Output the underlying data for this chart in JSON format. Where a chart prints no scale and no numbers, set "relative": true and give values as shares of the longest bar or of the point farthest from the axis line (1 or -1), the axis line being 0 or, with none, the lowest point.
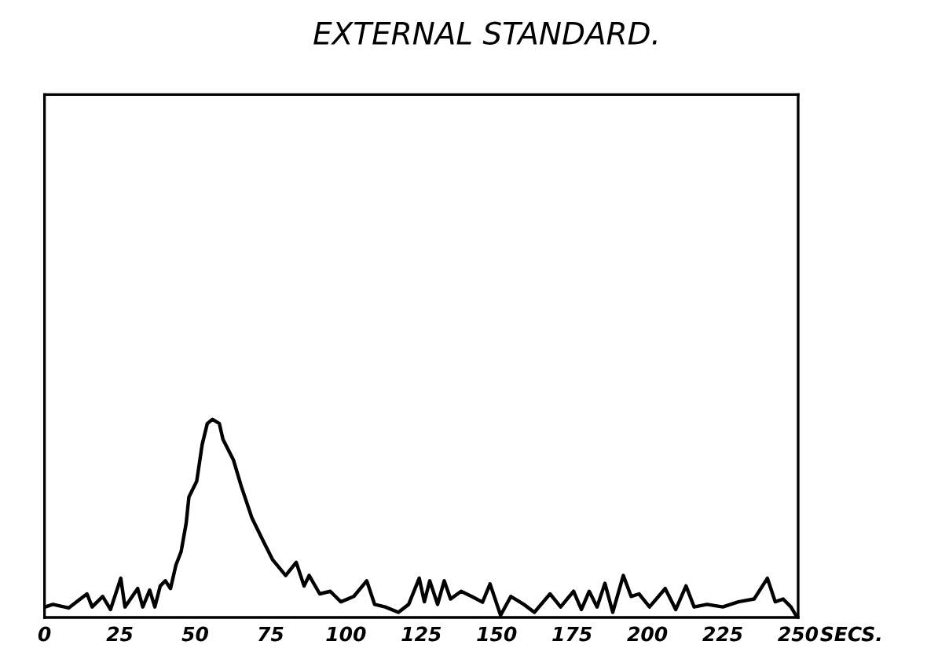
{
  "chart_data": {
    "type": "line",
    "title": "EXTERNAL STANDARD.",
    "xlabel": "SECS.",
    "relative": true,
    "color": "#000000",
    "xlim": [
      0,
      250
    ],
    "xticks": [
      0,
      25,
      50,
      75,
      100,
      125,
      150,
      175,
      200,
      225,
      250
    ],
    "grid": false,
    "legend": false,
    "x": [
      0.2,
      2.8,
      8.0,
      14.1,
      15.8,
      19.3,
      21.9,
      25.3,
      26.7,
      30.9,
      32.6,
      34.9,
      36.6,
      38.4,
      40.1,
      41.8,
      43.6,
      45.3,
      47.0,
      47.9,
      50.5,
      52.3,
      54.0,
      55.7,
      58.0,
      59.2,
      62.7,
      65.3,
      68.8,
      72.2,
      75.7,
      80.0,
      83.5,
      86.1,
      87.8,
      91.3,
      94.8,
      98.3,
      102.6,
      106.9,
      109.5,
      113.0,
      117.4,
      120.8,
      124.3,
      126.0,
      127.8,
      130.4,
      132.6,
      134.7,
      138.2,
      141.7,
      145.3,
      147.8,
      151.3,
      154.7,
      159.0,
      162.5,
      167.7,
      171.2,
      175.5,
      178.1,
      180.7,
      183.3,
      185.9,
      188.5,
      192.0,
      194.6,
      197.2,
      200.7,
      205.9,
      209.4,
      212.8,
      215.5,
      219.8,
      225.0,
      230.2,
      235.4,
      239.8,
      242.4,
      245.0,
      247.6,
      249.7
    ],
    "values": [
      0.053,
      0.066,
      0.048,
      0.119,
      0.053,
      0.106,
      0.04,
      0.198,
      0.053,
      0.146,
      0.053,
      0.138,
      0.053,
      0.159,
      0.185,
      0.146,
      0.265,
      0.331,
      0.476,
      0.608,
      0.688,
      0.873,
      0.979,
      1.0,
      0.979,
      0.899,
      0.794,
      0.661,
      0.503,
      0.397,
      0.291,
      0.212,
      0.278,
      0.159,
      0.212,
      0.119,
      0.132,
      0.079,
      0.106,
      0.185,
      0.066,
      0.053,
      0.026,
      0.066,
      0.198,
      0.079,
      0.185,
      0.066,
      0.185,
      0.093,
      0.132,
      0.106,
      0.077,
      0.169,
      0.011,
      0.106,
      0.066,
      0.026,
      0.119,
      0.053,
      0.132,
      0.04,
      0.132,
      0.053,
      0.172,
      0.026,
      0.212,
      0.106,
      0.119,
      0.053,
      0.146,
      0.04,
      0.159,
      0.053,
      0.066,
      0.053,
      0.079,
      0.093,
      0.198,
      0.079,
      0.093,
      0.053,
      0.0
    ]
  }
}
